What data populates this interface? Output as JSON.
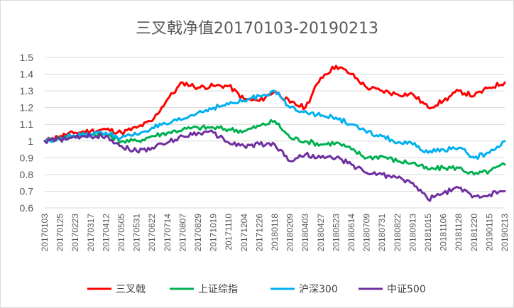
{
  "chart_data": {
    "type": "line",
    "title": "三叉戟净值20170103-20190213",
    "ylim": [
      0.6,
      1.5
    ],
    "yticks": [
      "0.6",
      "0.7",
      "0.8",
      "0.9",
      "1",
      "1.1",
      "1.2",
      "1.3",
      "1.4",
      "1.5"
    ],
    "categories": [
      "20170103",
      "20170125",
      "20170223",
      "20170317",
      "20170412",
      "20170505",
      "20170531",
      "20170622",
      "20170714",
      "20170807",
      "20170829",
      "20171019",
      "20171110",
      "20171204",
      "20171226",
      "20180118",
      "20180209",
      "20180403",
      "20180427",
      "20180523",
      "20180614",
      "20180709",
      "20180731",
      "20180822",
      "20180913",
      "20181015",
      "20181106",
      "20181128",
      "20181220",
      "20190115",
      "20190213"
    ],
    "grid": true,
    "legend_position": "bottom",
    "series": [
      {
        "name": "三叉戟",
        "color": "#ff0000",
        "values": [
          1.0,
          1.03,
          1.05,
          1.06,
          1.07,
          1.05,
          1.08,
          1.12,
          1.25,
          1.35,
          1.32,
          1.33,
          1.33,
          1.25,
          1.24,
          1.3,
          1.23,
          1.2,
          1.38,
          1.45,
          1.4,
          1.32,
          1.3,
          1.28,
          1.28,
          1.2,
          1.24,
          1.3,
          1.27,
          1.32,
          1.35
        ]
      },
      {
        "name": "上证综指",
        "color": "#00b050",
        "values": [
          1.0,
          1.02,
          1.03,
          1.04,
          1.04,
          1.0,
          1.0,
          1.03,
          1.05,
          1.07,
          1.08,
          1.08,
          1.07,
          1.06,
          1.09,
          1.12,
          1.02,
          1.0,
          0.98,
          0.99,
          0.95,
          0.9,
          0.91,
          0.88,
          0.87,
          0.83,
          0.84,
          0.84,
          0.8,
          0.82,
          0.86
        ]
      },
      {
        "name": "沪深300",
        "color": "#00b0f0",
        "values": [
          1.0,
          1.02,
          1.03,
          1.04,
          1.05,
          1.02,
          1.04,
          1.08,
          1.1,
          1.13,
          1.17,
          1.2,
          1.22,
          1.24,
          1.27,
          1.3,
          1.2,
          1.18,
          1.15,
          1.14,
          1.1,
          1.05,
          1.03,
          0.99,
          0.98,
          0.93,
          0.95,
          0.96,
          0.9,
          0.93,
          1.0
        ]
      },
      {
        "name": "中证500",
        "color": "#7030a0",
        "values": [
          1.0,
          1.01,
          1.02,
          1.03,
          1.03,
          0.97,
          0.94,
          0.96,
          0.99,
          1.03,
          1.05,
          1.05,
          0.99,
          0.97,
          0.98,
          0.98,
          0.88,
          0.92,
          0.9,
          0.9,
          0.86,
          0.81,
          0.8,
          0.78,
          0.75,
          0.65,
          0.69,
          0.72,
          0.67,
          0.68,
          0.7
        ]
      }
    ]
  }
}
